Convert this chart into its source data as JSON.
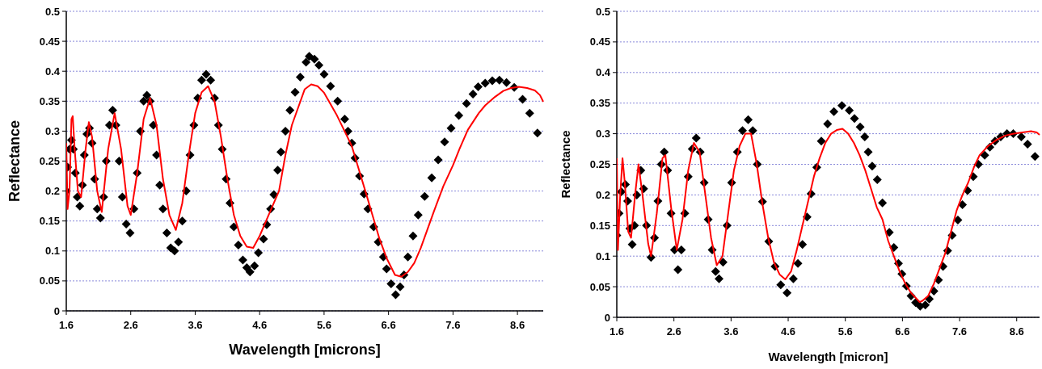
{
  "chart_data": [
    {
      "type": "scatter",
      "xlabel": "Wavelength [microns]",
      "ylabel": "Reflectance",
      "xlim": [
        1.6,
        9.0
      ],
      "ylim": [
        0,
        0.5
      ],
      "xticks": [
        1.6,
        2.6,
        3.6,
        4.6,
        5.6,
        6.6,
        7.6,
        8.6
      ],
      "yticks": [
        0,
        0.05,
        0.1,
        0.15,
        0.2,
        0.25,
        0.3,
        0.35,
        0.4,
        0.45,
        0.5
      ],
      "grid": "y",
      "series": [
        {
          "marker": "diamond",
          "color": "#000000",
          "x": [
            1.6,
            1.62,
            1.65,
            1.68,
            1.71,
            1.74,
            1.77,
            1.81,
            1.85,
            1.88,
            1.92,
            1.96,
            2.0,
            2.04,
            2.08,
            2.13,
            2.18,
            2.22,
            2.27,
            2.32,
            2.37,
            2.42,
            2.47,
            2.53,
            2.59,
            2.65,
            2.7,
            2.75,
            2.8,
            2.85,
            2.9,
            2.95,
            3.0,
            3.05,
            3.1,
            3.16,
            3.22,
            3.28,
            3.34,
            3.4,
            3.46,
            3.52,
            3.58,
            3.64,
            3.7,
            3.77,
            3.84,
            3.9,
            3.96,
            4.02,
            4.08,
            4.14,
            4.2,
            4.27,
            4.34,
            4.4,
            4.45,
            4.52,
            4.58,
            4.66,
            4.71,
            4.77,
            4.82,
            4.88,
            4.93,
            5.0,
            5.07,
            5.15,
            5.23,
            5.32,
            5.37,
            5.45,
            5.52,
            5.6,
            5.7,
            5.81,
            5.92,
            5.97,
            6.03,
            6.08,
            6.15,
            6.22,
            6.28,
            6.37,
            6.44,
            6.52,
            6.57,
            6.64,
            6.71,
            6.78,
            6.84,
            6.9,
            6.98,
            7.06,
            7.16,
            7.27,
            7.37,
            7.47,
            7.57,
            7.69,
            7.81,
            7.91,
            7.99,
            8.1,
            8.21,
            8.32,
            8.43,
            8.55,
            8.68,
            8.79,
            8.91
          ],
          "values": [
            0.2,
            0.24,
            0.27,
            0.285,
            0.27,
            0.23,
            0.19,
            0.175,
            0.21,
            0.26,
            0.295,
            0.305,
            0.28,
            0.22,
            0.17,
            0.155,
            0.19,
            0.25,
            0.31,
            0.335,
            0.31,
            0.25,
            0.19,
            0.145,
            0.13,
            0.17,
            0.23,
            0.3,
            0.35,
            0.36,
            0.35,
            0.31,
            0.26,
            0.21,
            0.17,
            0.13,
            0.105,
            0.1,
            0.115,
            0.15,
            0.2,
            0.26,
            0.31,
            0.355,
            0.385,
            0.395,
            0.385,
            0.355,
            0.31,
            0.27,
            0.22,
            0.18,
            0.14,
            0.11,
            0.085,
            0.072,
            0.065,
            0.075,
            0.097,
            0.12,
            0.144,
            0.17,
            0.194,
            0.235,
            0.265,
            0.3,
            0.335,
            0.365,
            0.39,
            0.415,
            0.425,
            0.42,
            0.41,
            0.395,
            0.375,
            0.35,
            0.32,
            0.3,
            0.28,
            0.255,
            0.225,
            0.195,
            0.17,
            0.14,
            0.115,
            0.09,
            0.07,
            0.045,
            0.027,
            0.04,
            0.06,
            0.09,
            0.125,
            0.16,
            0.191,
            0.222,
            0.252,
            0.282,
            0.305,
            0.326,
            0.346,
            0.362,
            0.374,
            0.38,
            0.384,
            0.385,
            0.381,
            0.373,
            0.353,
            0.33,
            0.297
          ]
        },
        {
          "type": "line",
          "color": "#ff0000",
          "x": [
            1.6,
            1.62,
            1.65,
            1.68,
            1.7,
            1.73,
            1.78,
            1.83,
            1.9,
            1.95,
            2.0,
            2.08,
            2.15,
            2.25,
            2.35,
            2.45,
            2.55,
            2.6,
            2.7,
            2.8,
            2.9,
            3.0,
            3.1,
            3.2,
            3.3,
            3.4,
            3.5,
            3.6,
            3.7,
            3.8,
            3.9,
            4.0,
            4.1,
            4.2,
            4.3,
            4.4,
            4.5,
            4.6,
            4.7,
            4.8,
            4.9,
            5.0,
            5.1,
            5.2,
            5.3,
            5.4,
            5.5,
            5.6,
            5.7,
            5.8,
            5.95,
            6.03,
            6.1,
            6.24,
            6.35,
            6.46,
            6.57,
            6.7,
            6.8,
            6.9,
            7.0,
            7.1,
            7.2,
            7.3,
            7.45,
            7.6,
            7.7,
            7.83,
            8.0,
            8.1,
            8.25,
            8.38,
            8.5,
            8.62,
            8.75,
            8.87,
            8.95,
            9.0
          ],
          "values": [
            0.28,
            0.17,
            0.2,
            0.32,
            0.325,
            0.27,
            0.2,
            0.19,
            0.27,
            0.315,
            0.29,
            0.2,
            0.165,
            0.27,
            0.33,
            0.27,
            0.175,
            0.16,
            0.23,
            0.32,
            0.355,
            0.31,
            0.22,
            0.16,
            0.135,
            0.18,
            0.26,
            0.33,
            0.365,
            0.375,
            0.35,
            0.29,
            0.22,
            0.16,
            0.125,
            0.107,
            0.105,
            0.125,
            0.15,
            0.175,
            0.2,
            0.26,
            0.31,
            0.34,
            0.37,
            0.378,
            0.375,
            0.364,
            0.345,
            0.326,
            0.293,
            0.275,
            0.25,
            0.2,
            0.16,
            0.12,
            0.088,
            0.06,
            0.057,
            0.065,
            0.08,
            0.105,
            0.135,
            0.165,
            0.208,
            0.243,
            0.27,
            0.302,
            0.33,
            0.343,
            0.357,
            0.367,
            0.372,
            0.374,
            0.372,
            0.368,
            0.36,
            0.349
          ]
        }
      ]
    },
    {
      "type": "scatter",
      "xlabel": "Wavelength [micron]",
      "ylabel": "Reflectance",
      "xlim": [
        1.6,
        9.0
      ],
      "ylim": [
        0,
        0.5
      ],
      "xticks": [
        1.6,
        2.6,
        3.6,
        4.6,
        5.6,
        6.6,
        7.6,
        8.6
      ],
      "yticks": [
        0,
        0.05,
        0.1,
        0.15,
        0.2,
        0.25,
        0.3,
        0.35,
        0.4,
        0.45,
        0.5
      ],
      "grid": "y",
      "series": [
        {
          "marker": "diamond",
          "color": "#000000",
          "x": [
            1.6,
            1.64,
            1.68,
            1.75,
            1.79,
            1.83,
            1.87,
            1.91,
            1.95,
            2.02,
            2.07,
            2.12,
            2.2,
            2.26,
            2.32,
            2.38,
            2.43,
            2.49,
            2.55,
            2.61,
            2.67,
            2.73,
            2.79,
            2.85,
            2.92,
            2.99,
            3.06,
            3.13,
            3.2,
            3.27,
            3.33,
            3.39,
            3.46,
            3.53,
            3.61,
            3.71,
            3.8,
            3.9,
            3.98,
            4.06,
            4.15,
            4.26,
            4.37,
            4.47,
            4.58,
            4.69,
            4.77,
            4.85,
            4.93,
            5.0,
            5.1,
            5.18,
            5.29,
            5.4,
            5.54,
            5.67,
            5.76,
            5.86,
            5.94,
            6.0,
            6.07,
            6.16,
            6.25,
            6.37,
            6.45,
            6.53,
            6.59,
            6.67,
            6.75,
            6.83,
            6.91,
            7.0,
            7.07,
            7.15,
            7.23,
            7.31,
            7.39,
            7.47,
            7.57,
            7.65,
            7.74,
            7.84,
            7.93,
            8.04,
            8.13,
            8.22,
            8.32,
            8.43,
            8.54,
            8.68,
            8.79,
            8.92
          ],
          "values": [
            0.134,
            0.17,
            0.205,
            0.217,
            0.19,
            0.145,
            0.119,
            0.15,
            0.2,
            0.24,
            0.21,
            0.15,
            0.098,
            0.13,
            0.19,
            0.25,
            0.27,
            0.24,
            0.17,
            0.11,
            0.078,
            0.11,
            0.17,
            0.23,
            0.275,
            0.293,
            0.27,
            0.22,
            0.16,
            0.11,
            0.075,
            0.063,
            0.09,
            0.15,
            0.22,
            0.27,
            0.305,
            0.323,
            0.305,
            0.25,
            0.189,
            0.124,
            0.083,
            0.053,
            0.04,
            0.063,
            0.088,
            0.119,
            0.164,
            0.202,
            0.245,
            0.288,
            0.316,
            0.336,
            0.346,
            0.338,
            0.325,
            0.311,
            0.295,
            0.27,
            0.247,
            0.225,
            0.187,
            0.139,
            0.114,
            0.088,
            0.071,
            0.051,
            0.035,
            0.024,
            0.018,
            0.02,
            0.03,
            0.043,
            0.061,
            0.083,
            0.109,
            0.134,
            0.159,
            0.184,
            0.207,
            0.23,
            0.25,
            0.265,
            0.278,
            0.288,
            0.295,
            0.3,
            0.3,
            0.295,
            0.283,
            0.263
          ]
        },
        {
          "type": "line",
          "color": "#ff0000",
          "x": [
            1.6,
            1.62,
            1.66,
            1.7,
            1.74,
            1.8,
            1.85,
            1.92,
            1.98,
            2.05,
            2.15,
            2.2,
            2.3,
            2.4,
            2.45,
            2.55,
            2.65,
            2.75,
            2.85,
            2.95,
            3.05,
            3.15,
            3.25,
            3.35,
            3.45,
            3.55,
            3.65,
            3.75,
            3.85,
            3.95,
            4.05,
            4.15,
            4.25,
            4.35,
            4.45,
            4.55,
            4.65,
            4.75,
            4.85,
            4.95,
            5.05,
            5.15,
            5.25,
            5.35,
            5.45,
            5.55,
            5.65,
            5.75,
            5.85,
            5.95,
            6.05,
            6.15,
            6.25,
            6.35,
            6.45,
            6.55,
            6.65,
            6.75,
            6.85,
            6.9,
            6.95,
            7.05,
            7.15,
            7.25,
            7.35,
            7.45,
            7.55,
            7.65,
            7.75,
            7.85,
            7.95,
            8.1,
            8.25,
            8.4,
            8.55,
            8.7,
            8.85,
            8.95,
            9.0
          ],
          "values": [
            0.26,
            0.11,
            0.2,
            0.26,
            0.22,
            0.14,
            0.13,
            0.2,
            0.25,
            0.2,
            0.12,
            0.1,
            0.17,
            0.26,
            0.265,
            0.18,
            0.11,
            0.16,
            0.24,
            0.285,
            0.27,
            0.2,
            0.13,
            0.085,
            0.1,
            0.17,
            0.24,
            0.28,
            0.3,
            0.3,
            0.25,
            0.185,
            0.13,
            0.09,
            0.07,
            0.062,
            0.075,
            0.11,
            0.15,
            0.19,
            0.23,
            0.26,
            0.285,
            0.3,
            0.306,
            0.308,
            0.3,
            0.285,
            0.265,
            0.24,
            0.21,
            0.18,
            0.16,
            0.125,
            0.1,
            0.075,
            0.055,
            0.04,
            0.03,
            0.025,
            0.027,
            0.035,
            0.055,
            0.08,
            0.105,
            0.14,
            0.175,
            0.2,
            0.22,
            0.245,
            0.265,
            0.28,
            0.29,
            0.297,
            0.3,
            0.302,
            0.304,
            0.302,
            0.298
          ]
        }
      ]
    }
  ]
}
